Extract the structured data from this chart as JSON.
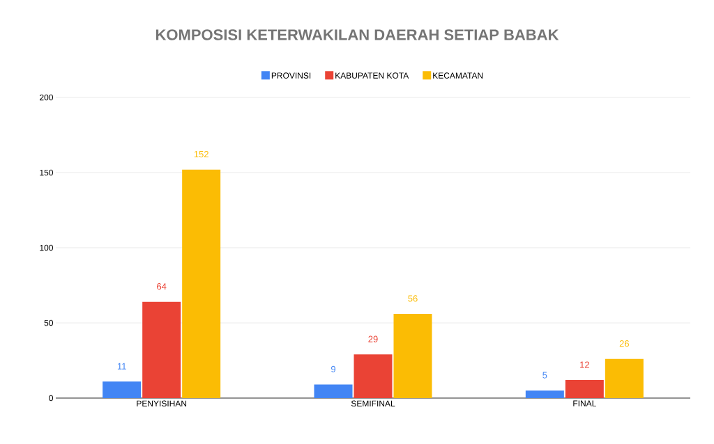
{
  "chart_data": {
    "type": "bar",
    "title": "KOMPOSISI KETERWAKILAN DAERAH SETIAP BABAK",
    "categories": [
      "PENYISIHAN",
      "SEMIFINAL",
      "FINAL"
    ],
    "series": [
      {
        "name": "PROVINSI",
        "color": "#4285f4",
        "values": [
          11,
          9,
          5
        ]
      },
      {
        "name": "KABUPATEN KOTA",
        "color": "#ea4335",
        "values": [
          64,
          29,
          12
        ]
      },
      {
        "name": "KECAMATAN",
        "color": "#fbbc04",
        "values": [
          152,
          56,
          26
        ]
      }
    ],
    "ylim": [
      0,
      200
    ],
    "yticks": [
      0,
      50,
      100,
      150,
      200
    ],
    "grid": "y",
    "legend": "top",
    "data_labels": true
  }
}
